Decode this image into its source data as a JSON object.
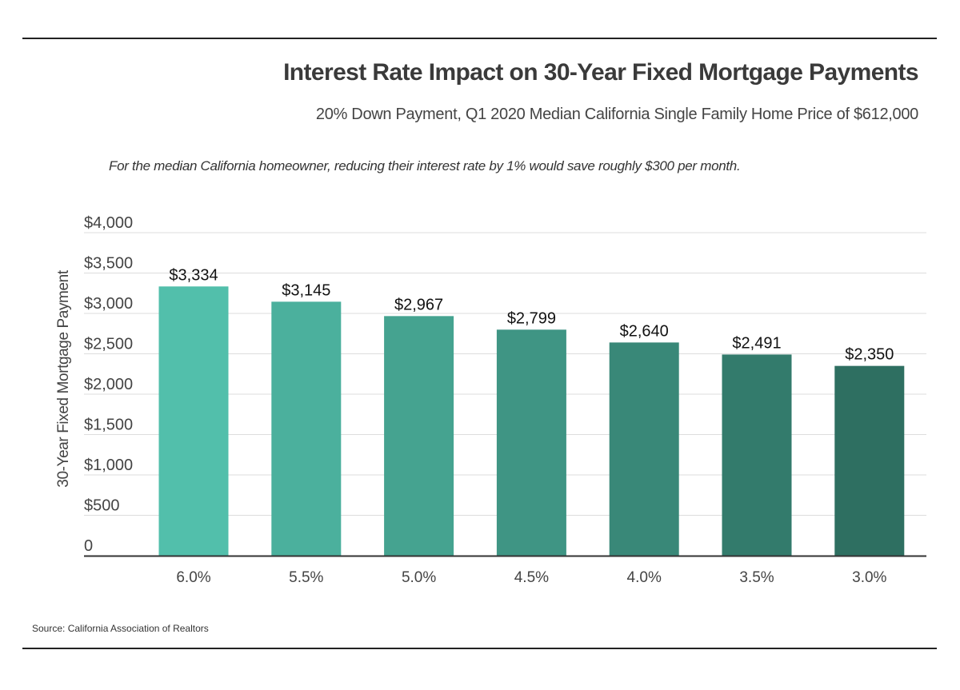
{
  "chart_data": {
    "type": "bar",
    "title": "Interest Rate Impact on 30-Year Fixed Mortgage Payments",
    "subtitle": "20% Down Payment, Q1 2020 Median California Single Family Home Price of $612,000",
    "annotation": "For the median California homeowner, reducing their interest rate by 1% would save  roughly $300 per month.",
    "source": "Source:  California Association of Realtors",
    "xlabel": "",
    "ylabel": "30-Year Fixed Mortgage Payment",
    "categories": [
      "6.0%",
      "5.5%",
      "5.0%",
      "4.5%",
      "4.0%",
      "3.5%",
      "3.0%"
    ],
    "values": [
      3334,
      3145,
      2967,
      2799,
      2640,
      2491,
      2350
    ],
    "value_labels": [
      "$3,334",
      "$3,145",
      "$2,967",
      "$2,799",
      "$2,640",
      "$2,491",
      "$2,350"
    ],
    "ylim": [
      0,
      4000
    ],
    "yticks": [
      0,
      500,
      1000,
      1500,
      2000,
      2500,
      3000,
      3500,
      4000
    ],
    "ytick_labels": [
      "0",
      "$500",
      "$1,000",
      "$1,500",
      "$2,000",
      "$2,500",
      "$3,000",
      "$3,500",
      "$4,000"
    ],
    "grid": true,
    "legend": "none",
    "bar_colors": [
      "#52bfab",
      "#4bb09d",
      "#45a390",
      "#3f9584",
      "#398878",
      "#337b6c",
      "#2e6f61"
    ]
  }
}
